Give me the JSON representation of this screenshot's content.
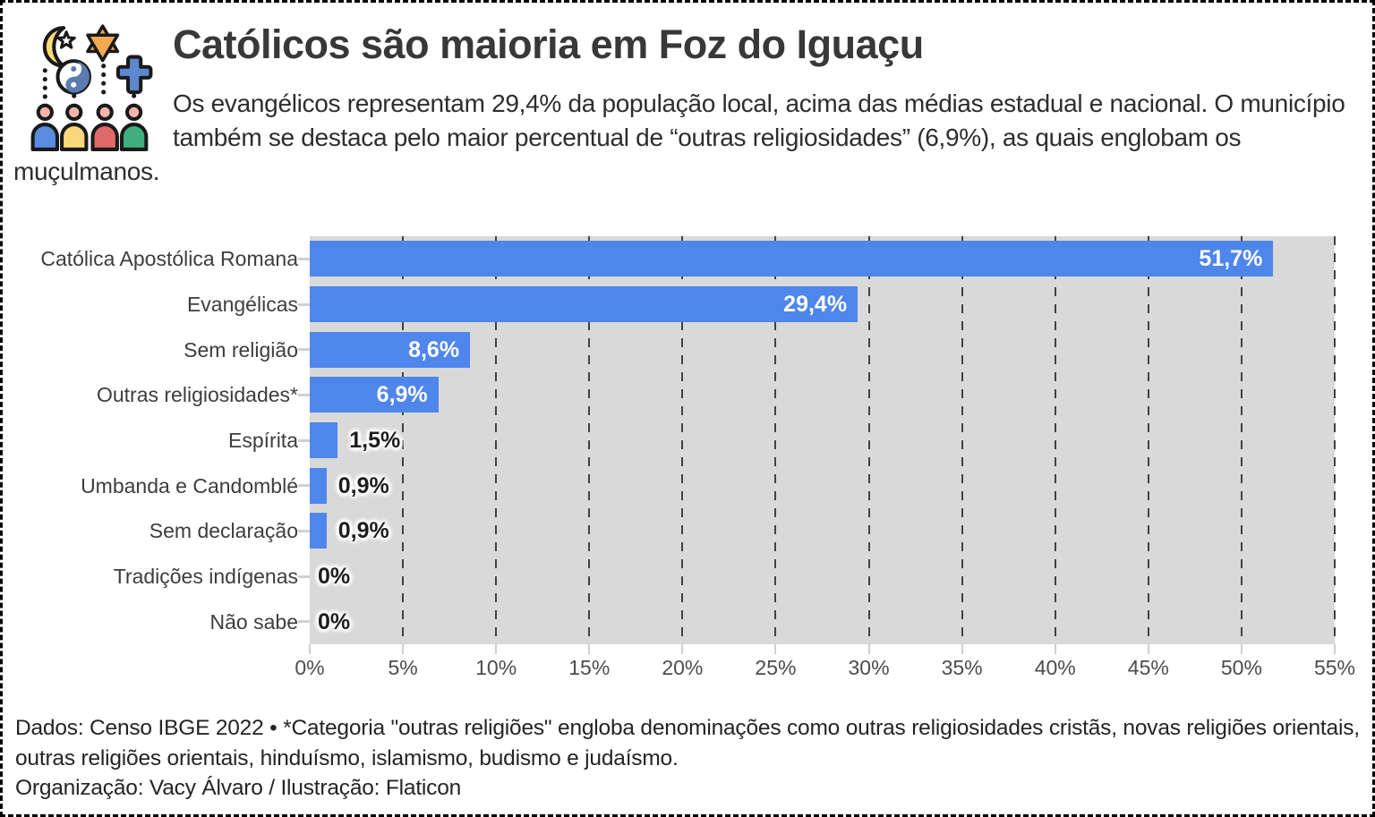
{
  "header": {
    "title": "Católicos são maioria em Foz do Iguaçu",
    "subtitle": "Os evangélicos representam 29,4% da população local, acima das médias estadual e nacional. O município também se destaca pelo maior percentual de “outras religiosidades” (6,9%), as quais englobam os muçulmanos.",
    "icon": {
      "name": "religions-illustration",
      "symbols": [
        "crescent-moon-and-star",
        "star-of-david",
        "yin-yang",
        "christian-cross",
        "four-people"
      ]
    }
  },
  "chart_data": {
    "type": "bar",
    "orientation": "horizontal",
    "categories": [
      "Católica Apostólica Romana",
      "Evangélicas",
      "Sem religião",
      "Outras religiosidades*",
      "Espírita",
      "Umbanda e Candomblé",
      "Sem declaração",
      "Tradições indígenas",
      "Não sabe"
    ],
    "values": [
      51.7,
      29.4,
      8.6,
      6.9,
      1.5,
      0.9,
      0.9,
      0,
      0
    ],
    "value_labels": [
      "51,7%",
      "29,4%",
      "8,6%",
      "6,9%",
      "1,5%",
      "0,9%",
      "0,9%",
      "0%",
      "0%"
    ],
    "label_position": [
      "inside",
      "inside",
      "inside",
      "inside",
      "outside",
      "outside",
      "outside",
      "outside",
      "outside"
    ],
    "x_tick_labels": [
      "0%",
      "5%",
      "10%",
      "15%",
      "20%",
      "25%",
      "30%",
      "35%",
      "40%",
      "45%",
      "50%",
      "55%"
    ],
    "xlim": [
      0,
      55
    ],
    "grid": "dashed vertical gridlines every 5%, drawn behind bars",
    "legend": "none",
    "colors": {
      "bar": "#4e86ec",
      "plot_background": "#d9d9d9",
      "gridline": "#424242",
      "value_label_inside": "#ffffff",
      "value_label_halo": "#5d9bf8",
      "value_label_outside": "#1d1d1d"
    }
  },
  "footer": {
    "note": "Dados: Censo IBGE 2022 • *Categoria \"outras religiões\" engloba denominações como outras religiosidades cristãs, novas religiões orientais, outras religiões orientais, hinduísmo, islamismo, budismo e judaísmo.",
    "credit": "Organização: Vacy Álvaro / Ilustração: Flaticon"
  }
}
